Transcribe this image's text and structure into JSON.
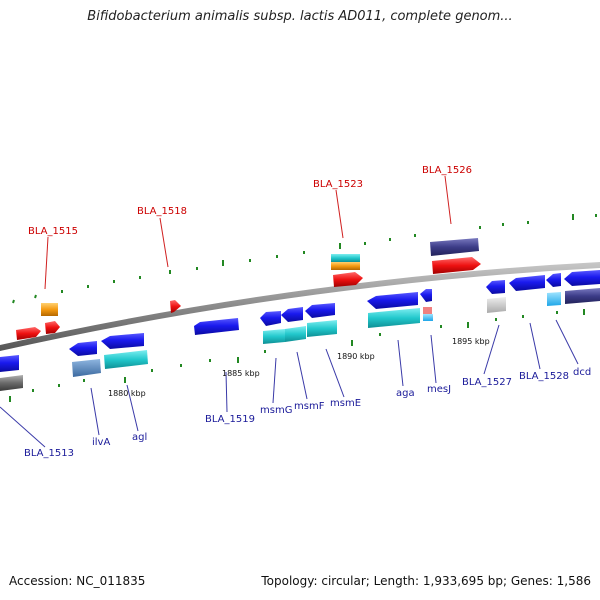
{
  "title": "Bifidobacterium animalis subsp. lactis AD011, complete genom...",
  "footer": {
    "accession": "Accession: NC_011835",
    "topology": "Topology: circular; Length: 1,933,695 bp; Genes: 1,586"
  },
  "scale_labels": [
    "1880 kbp",
    "1885 kbp",
    "1890 kbp",
    "1895 kbp"
  ],
  "top_labels": [
    "BLA_1515",
    "BLA_1518",
    "BLA_1523",
    "BLA_1526"
  ],
  "bottom_labels": [
    "BLA_1513",
    "ilvA",
    "agl",
    "BLA_1519",
    "msmG",
    "msmF",
    "msmE",
    "aga",
    "mesJ",
    "BLA_1527",
    "BLA_1528",
    "dcd"
  ],
  "colors": {
    "gene_blue": "#1a1aee",
    "gene_cyan": "#22c8cc",
    "gene_red": "#ee1111",
    "gene_orange": "#f59a10",
    "gene_navy": "#3c3c88",
    "gene_gray": "#6a6a6a",
    "backbone": "#8a8a8a",
    "tick": "#228822"
  }
}
